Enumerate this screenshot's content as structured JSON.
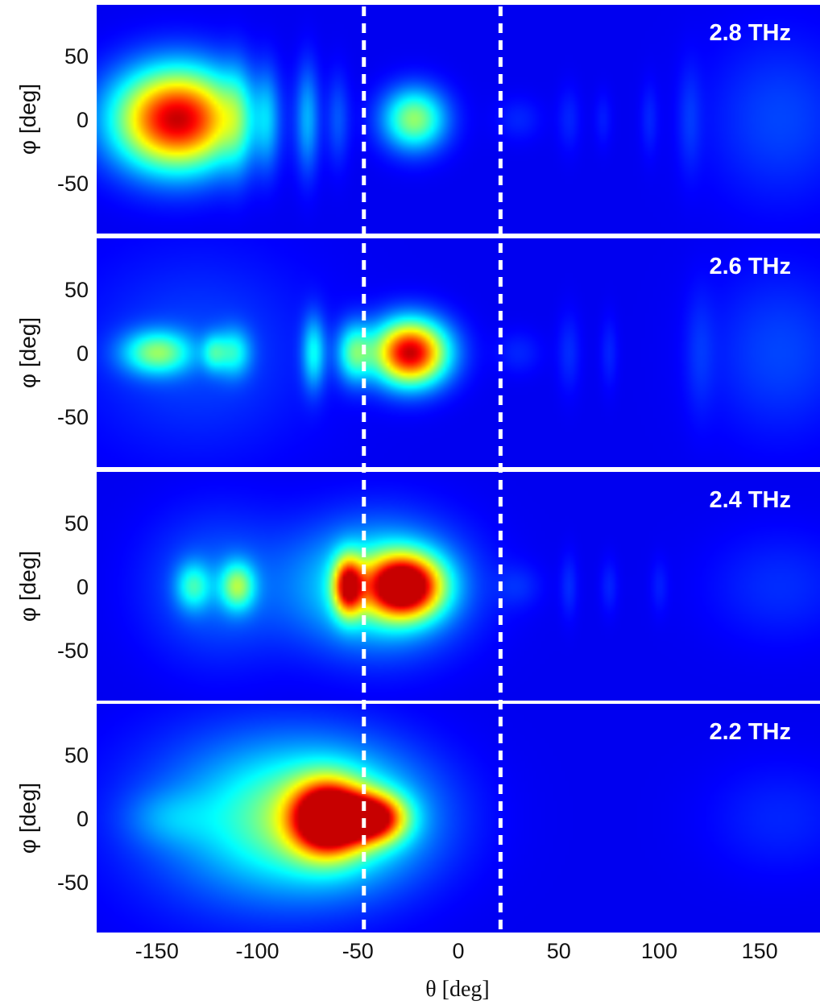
{
  "chart_data": {
    "type": "heatmap",
    "colormap": "jet",
    "background_color": "#0a1fb8",
    "marker_line_color": "#ffffff",
    "xlabel": "θ [deg]",
    "ylabel": "φ [deg]",
    "xlim": [
      -180,
      180
    ],
    "ylim": [
      -90,
      90
    ],
    "xticks": [
      -150,
      -100,
      -50,
      0,
      50,
      100,
      150
    ],
    "yticks": [
      50,
      0,
      -50
    ],
    "dashed_lines_x": [
      -47,
      21
    ],
    "panels": [
      {
        "label": "2.8 THz",
        "lobes": [
          {
            "theta": -140,
            "phi": 0,
            "sx": 22,
            "sy": 28,
            "amp": 1.0
          },
          {
            "theta": -22,
            "phi": 0,
            "sx": 11,
            "sy": 17,
            "amp": 0.5
          },
          {
            "theta": -75,
            "phi": 0,
            "sx": 4,
            "sy": 30,
            "amp": 0.22
          },
          {
            "theta": -95,
            "phi": 0,
            "sx": 4,
            "sy": 28,
            "amp": 0.16
          },
          {
            "theta": -110,
            "phi": 0,
            "sx": 5,
            "sy": 32,
            "amp": 0.14
          },
          {
            "theta": -60,
            "phi": 0,
            "sx": 4,
            "sy": 25,
            "amp": 0.12
          },
          {
            "theta": 160,
            "phi": 0,
            "sx": 25,
            "sy": 45,
            "amp": 0.1
          },
          {
            "theta": 115,
            "phi": 0,
            "sx": 4,
            "sy": 30,
            "amp": 0.07
          },
          {
            "theta": 95,
            "phi": 0,
            "sx": 3,
            "sy": 20,
            "amp": 0.06
          },
          {
            "theta": 55,
            "phi": 0,
            "sx": 4,
            "sy": 18,
            "amp": 0.06
          },
          {
            "theta": 72,
            "phi": 0,
            "sx": 3,
            "sy": 15,
            "amp": 0.05
          },
          {
            "theta": 30,
            "phi": 0,
            "sx": 8,
            "sy": 12,
            "amp": 0.06
          }
        ]
      },
      {
        "label": "2.6 THz",
        "lobes": [
          {
            "theta": -24,
            "phi": 0,
            "sx": 13,
            "sy": 18,
            "amp": 1.0
          },
          {
            "theta": -150,
            "phi": 0,
            "sx": 12,
            "sy": 12,
            "amp": 0.42
          },
          {
            "theta": -112,
            "phi": 0,
            "sx": 6,
            "sy": 13,
            "amp": 0.28
          },
          {
            "theta": -122,
            "phi": 0,
            "sx": 4,
            "sy": 10,
            "amp": 0.22
          },
          {
            "theta": -72,
            "phi": 0,
            "sx": 4,
            "sy": 20,
            "amp": 0.3
          },
          {
            "theta": -52,
            "phi": 0,
            "sx": 6,
            "sy": 16,
            "amp": 0.36
          },
          {
            "theta": -130,
            "phi": 0,
            "sx": 40,
            "sy": 55,
            "amp": 0.1
          },
          {
            "theta": 160,
            "phi": 0,
            "sx": 25,
            "sy": 45,
            "amp": 0.1
          },
          {
            "theta": 55,
            "phi": 0,
            "sx": 4,
            "sy": 22,
            "amp": 0.07
          },
          {
            "theta": 75,
            "phi": 0,
            "sx": 3,
            "sy": 20,
            "amp": 0.06
          },
          {
            "theta": 120,
            "phi": 0,
            "sx": 5,
            "sy": 35,
            "amp": 0.06
          },
          {
            "theta": 30,
            "phi": 0,
            "sx": 8,
            "sy": 12,
            "amp": 0.06
          }
        ]
      },
      {
        "label": "2.4 THz",
        "lobes": [
          {
            "theta": -27,
            "phi": 0,
            "sx": 13,
            "sy": 17,
            "amp": 1.0
          },
          {
            "theta": -55,
            "phi": 0,
            "sx": 5,
            "sy": 16,
            "amp": 0.72
          },
          {
            "theta": -40,
            "phi": 0,
            "sx": 28,
            "sy": 34,
            "amp": 0.4
          },
          {
            "theta": -110,
            "phi": 0,
            "sx": 6,
            "sy": 13,
            "amp": 0.4
          },
          {
            "theta": -132,
            "phi": 0,
            "sx": 6,
            "sy": 13,
            "amp": 0.28
          },
          {
            "theta": -120,
            "phi": 0,
            "sx": 25,
            "sy": 40,
            "amp": 0.14
          },
          {
            "theta": 55,
            "phi": 0,
            "sx": 3,
            "sy": 18,
            "amp": 0.07
          },
          {
            "theta": 75,
            "phi": 0,
            "sx": 3,
            "sy": 15,
            "amp": 0.06
          },
          {
            "theta": 100,
            "phi": 0,
            "sx": 3,
            "sy": 15,
            "amp": 0.05
          },
          {
            "theta": 160,
            "phi": 0,
            "sx": 25,
            "sy": 30,
            "amp": 0.07
          },
          {
            "theta": 30,
            "phi": 0,
            "sx": 8,
            "sy": 12,
            "amp": 0.06
          }
        ]
      },
      {
        "label": "2.2 THz",
        "lobes": [
          {
            "theta": -65,
            "phi": 0,
            "sx": 12,
            "sy": 19,
            "amp": 1.0
          },
          {
            "theta": -42,
            "phi": 0,
            "sx": 11,
            "sy": 13,
            "amp": 0.78
          },
          {
            "theta": -65,
            "phi": 0,
            "sx": 35,
            "sy": 38,
            "amp": 0.45
          },
          {
            "theta": -110,
            "phi": 0,
            "sx": 40,
            "sy": 50,
            "amp": 0.18
          },
          {
            "theta": -145,
            "phi": 0,
            "sx": 15,
            "sy": 15,
            "amp": 0.1
          },
          {
            "theta": 160,
            "phi": 0,
            "sx": 25,
            "sy": 30,
            "amp": 0.06
          }
        ]
      }
    ]
  }
}
